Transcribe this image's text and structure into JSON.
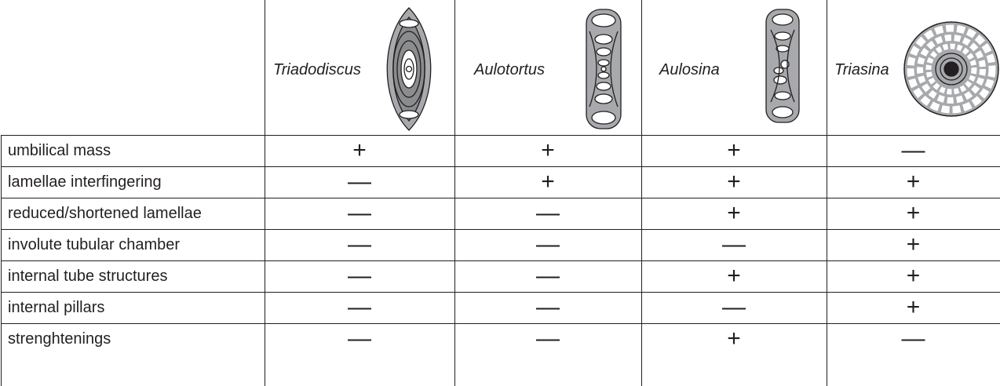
{
  "table": {
    "header": [
      "Triadodiscus",
      "Aulotortus",
      "Aulosina",
      "Triasina"
    ],
    "rows": [
      {
        "label": "umbilical mass",
        "values": [
          "+",
          "+",
          "+",
          "—"
        ]
      },
      {
        "label": "lamellae interfingering",
        "values": [
          "—",
          "+",
          "+",
          "+"
        ]
      },
      {
        "label": "reduced/shortened lamellae",
        "values": [
          "—",
          "—",
          "+",
          "+"
        ]
      },
      {
        "label": "involute tubular chamber",
        "values": [
          "—",
          "—",
          "—",
          "+"
        ]
      },
      {
        "label": "internal tube structures",
        "values": [
          "—",
          "—",
          "+",
          "+"
        ]
      },
      {
        "label": "internal pillars",
        "values": [
          "—",
          "—",
          "—",
          "+"
        ]
      },
      {
        "label": "strenghtenings",
        "values": [
          "—",
          "—",
          "+",
          "—"
        ]
      }
    ]
  }
}
